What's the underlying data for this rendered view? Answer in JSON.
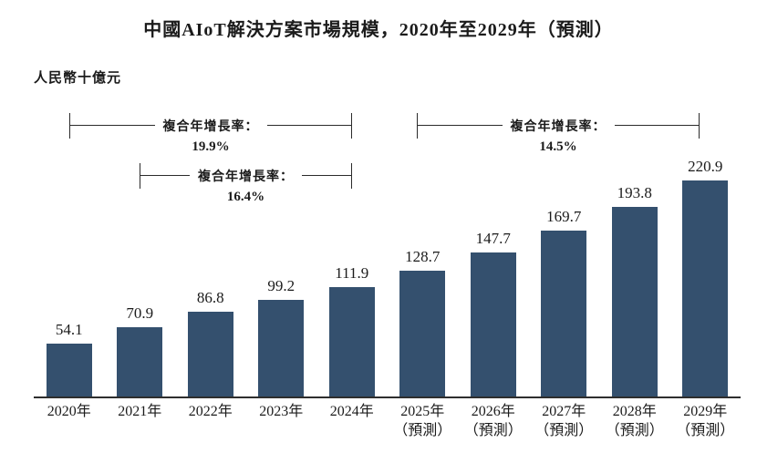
{
  "page": {
    "title": "中國AIoT解決方案市場規模，2020年至2029年（預測）",
    "unit_label": "人民幣十億元"
  },
  "chart_data": {
    "type": "bar",
    "title": "中國AIoT解決方案市場規模，2020年至2029年（預測）",
    "ylabel": "人民幣十億元",
    "categories": [
      "2020年",
      "2021年",
      "2022年",
      "2023年",
      "2024年",
      "2025年\n（預測）",
      "2026年\n（預測）",
      "2027年\n（預測）",
      "2028年\n（預測）",
      "2029年\n（預測）"
    ],
    "values": [
      54.1,
      70.9,
      86.8,
      99.2,
      111.9,
      128.7,
      147.7,
      169.7,
      193.8,
      220.9
    ],
    "ylim": [
      0,
      240
    ],
    "grid": false,
    "legend": "none",
    "bar_color": "#34506e",
    "axis_color": "#2e2e2e",
    "annotations": [
      {
        "label": "複合年增長率：",
        "value": "19.9%",
        "from_category": "2020年",
        "to_category": "2024年"
      },
      {
        "label": "複合年增長率：",
        "value": "16.4%",
        "from_category": "2021年",
        "to_category": "2024年"
      },
      {
        "label": "複合年增長率：",
        "value": "14.5%",
        "from_category": "2025年",
        "to_category": "2029年"
      }
    ]
  }
}
